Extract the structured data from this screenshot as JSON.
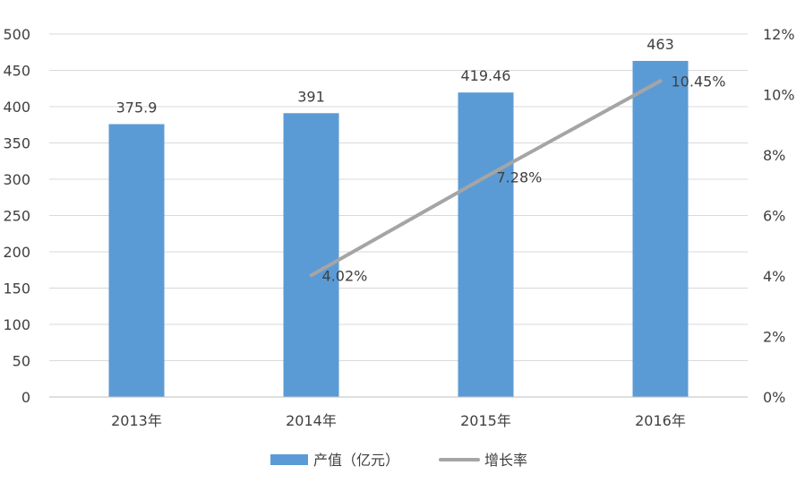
{
  "chart_data": {
    "type": "bar",
    "categories": [
      "2013年",
      "2014年",
      "2015年",
      "2016年"
    ],
    "series": [
      {
        "name": "产值（亿元）",
        "type": "bar",
        "axis": "left",
        "values": [
          375.9,
          391,
          419.46,
          463
        ],
        "labels": [
          "375.9",
          "391",
          "419.46",
          "463"
        ],
        "color": "#5b9bd5"
      },
      {
        "name": "增长率",
        "type": "line",
        "axis": "right",
        "values": [
          null,
          4.02,
          7.28,
          10.45
        ],
        "labels": [
          "",
          "4.02%",
          "7.28%",
          "10.45%"
        ],
        "color": "#a5a5a5"
      }
    ],
    "left_axis": {
      "min": 0,
      "max": 500,
      "ticks": [
        "0",
        "50",
        "100",
        "150",
        "200",
        "250",
        "300",
        "350",
        "400",
        "450",
        "500"
      ]
    },
    "right_axis": {
      "min": 0,
      "max": 12,
      "ticks": [
        "0%",
        "2%",
        "4%",
        "6%",
        "8%",
        "10%",
        "12%"
      ]
    },
    "grid": true,
    "legend": "bottom"
  }
}
